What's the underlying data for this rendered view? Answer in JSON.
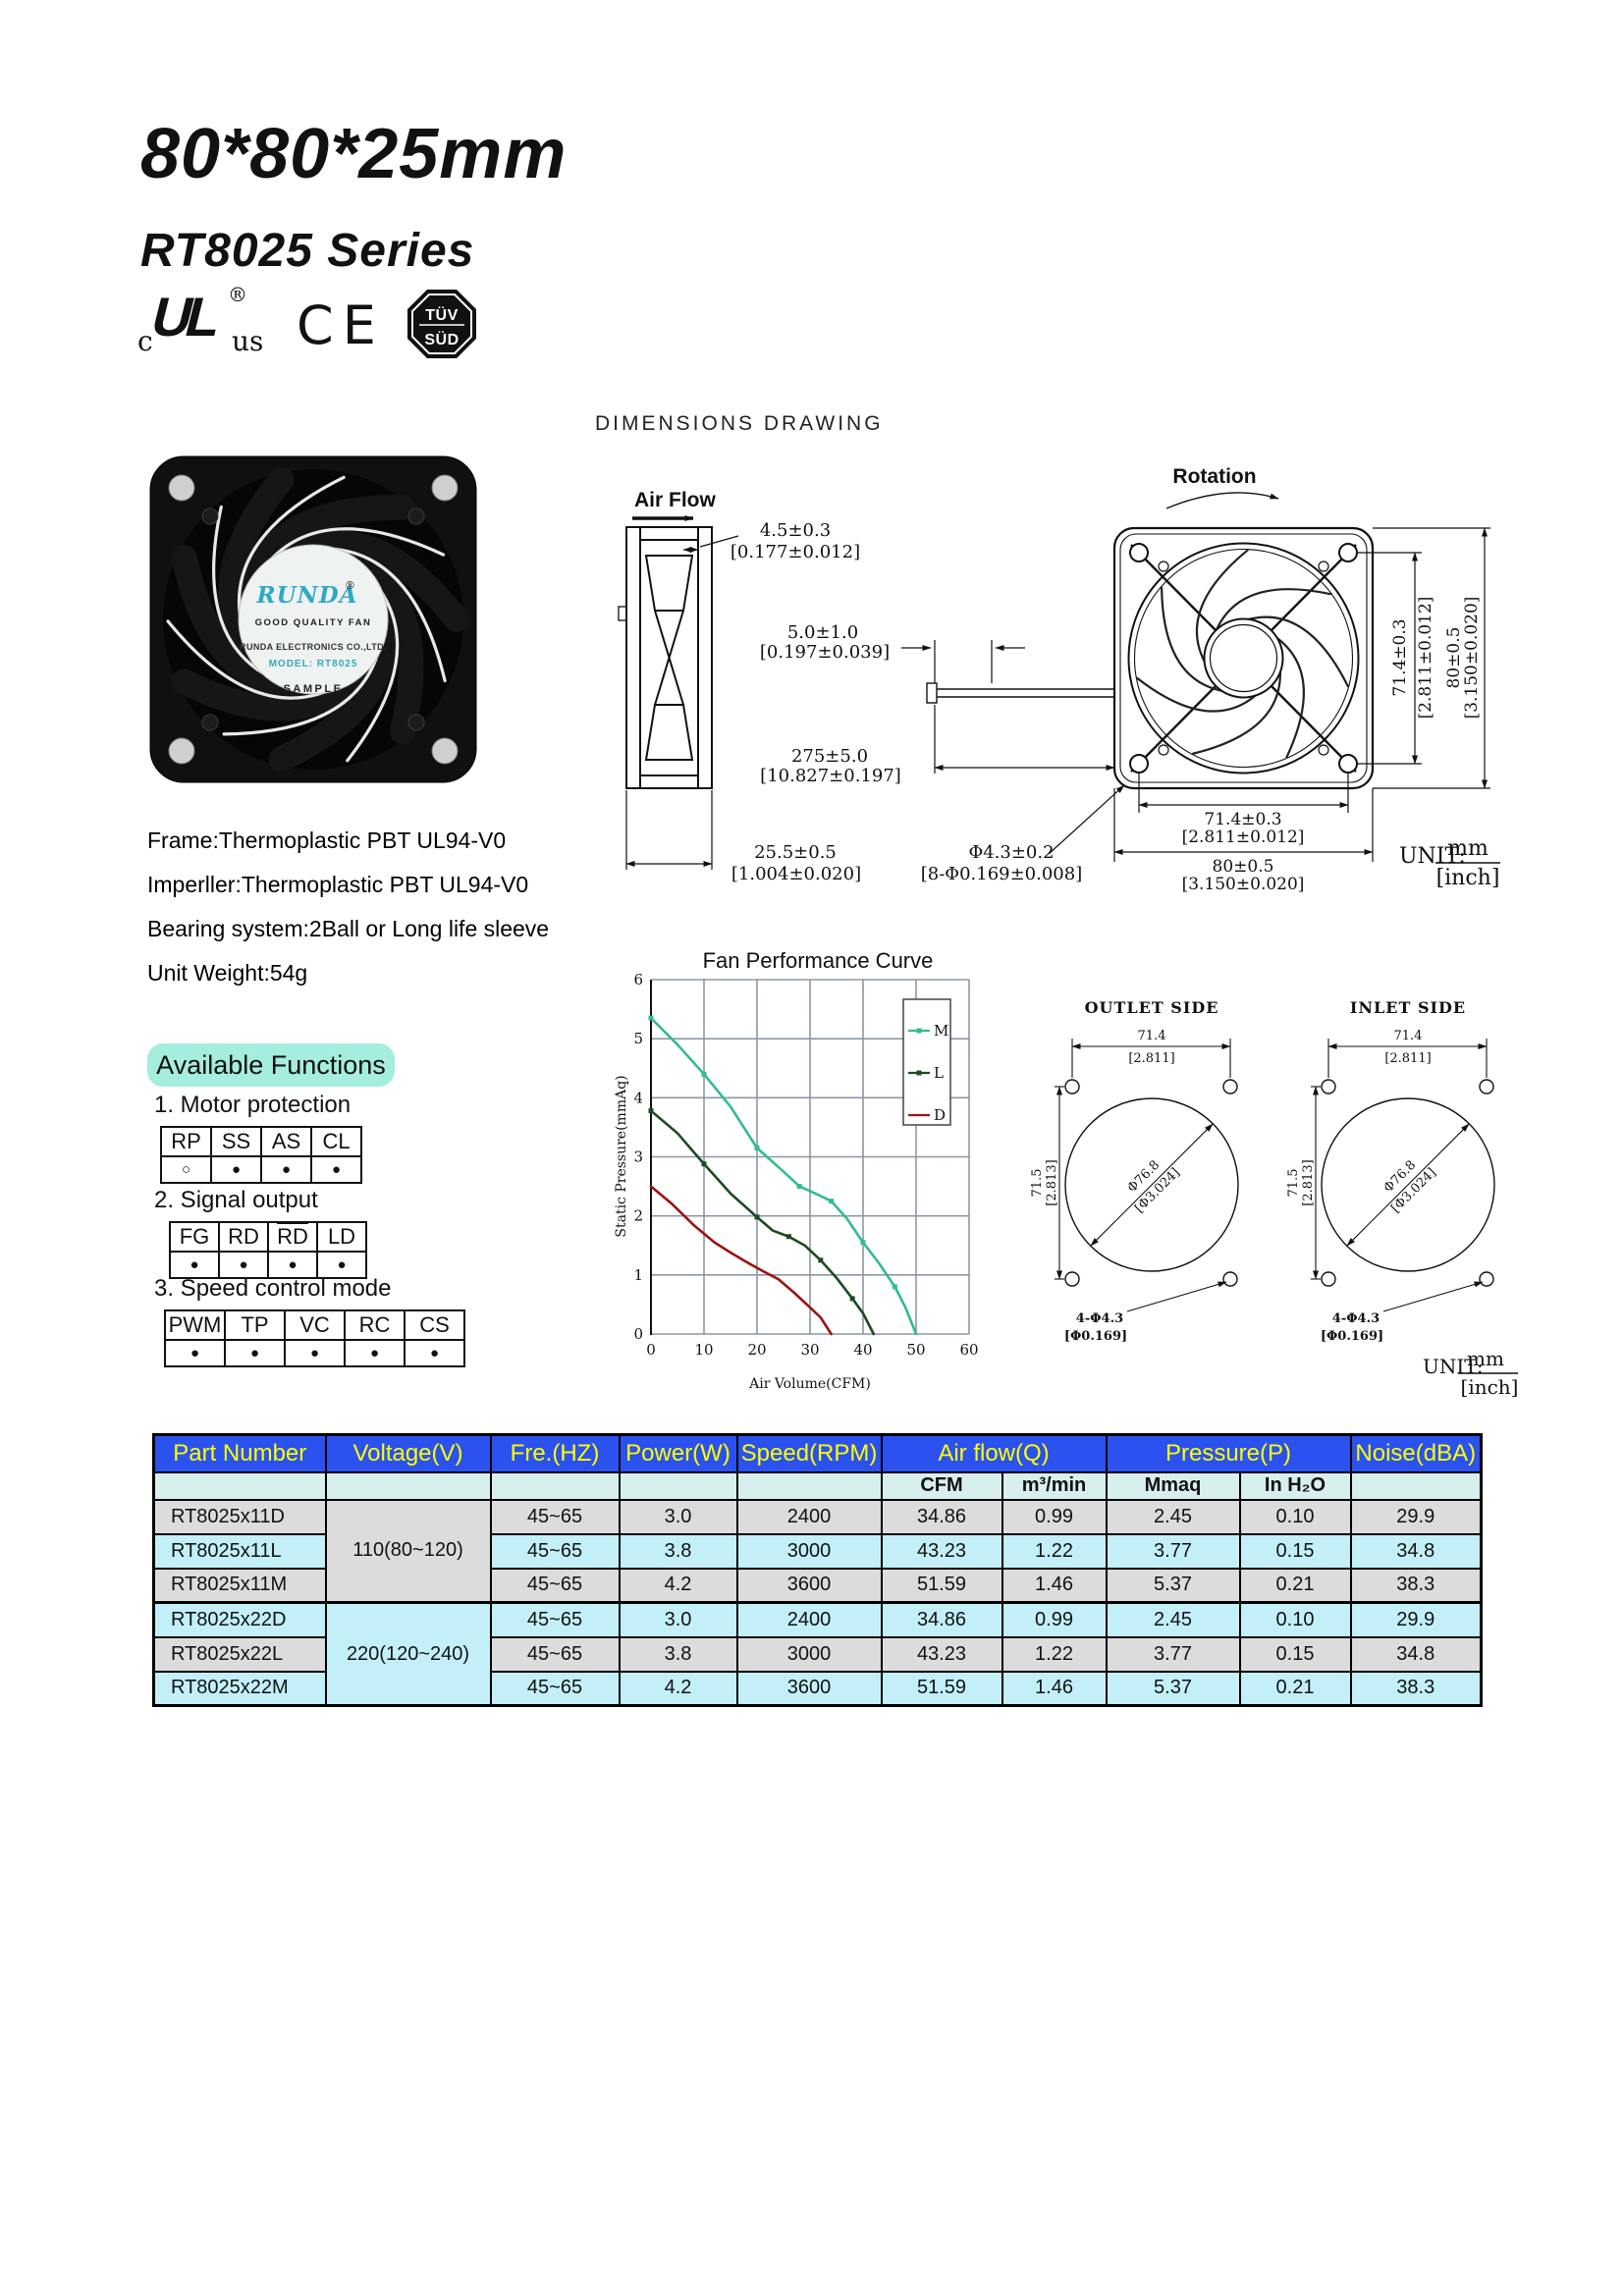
{
  "header": {
    "title": "80*80*25mm",
    "series": "RT8025 Series"
  },
  "logos": {
    "ul_c": "c",
    "ul_mark": "UL",
    "ul_reg": "®",
    "ul_us": "us",
    "ce": "CE",
    "tuv_top": "TÜV",
    "tuv_bottom": "SÜD"
  },
  "section": {
    "dimensions_heading": "DIMENSIONS DRAWING"
  },
  "fan_label": {
    "brand": "RUNDA",
    "reg": "®",
    "line1": "GOOD QUALITY FAN",
    "line2": "RUNDA ELECTRONICS CO.,LTD.",
    "line3": "MODEL: RT8025",
    "line4": "SAMPLE"
  },
  "specs": [
    "Frame:Thermoplastic PBT UL94-V0",
    "Imperller:Thermoplastic PBT UL94-V0",
    "Bearing system:2Ball or Long life sleeve",
    "Unit Weight:54g"
  ],
  "drawing": {
    "air_flow": "Air Flow",
    "rotation": "Rotation",
    "d1_mm": "4.5±0.3",
    "d1_in": "[0.177±0.012]",
    "d2_mm": "5.0±1.0",
    "d2_in": "[0.197±0.039]",
    "d3_mm": "275±5.0",
    "d3_in": "[10.827±0.197]",
    "d4_mm": "25.5±0.5",
    "d4_in": "[1.004±0.020]",
    "d5_mm": "Φ4.3±0.2",
    "d5_in": "[8-Φ0.169±0.008]",
    "v1_mm": "71.4±0.3",
    "v1_in": "[2.811±0.012]",
    "v2_mm": "80±0.5",
    "v2_in": "[3.150±0.020]",
    "h1_mm": "71.4±0.3",
    "h1_in": "[2.811±0.012]",
    "h2_mm": "80±0.5",
    "h2_in": "[3.150±0.020]",
    "unit_label": "UNIT:",
    "unit_mm": "mm",
    "unit_in": "[inch]"
  },
  "outlet_inlet": {
    "outlet_title": "OUTLET SIDE",
    "inlet_title": "INLET SIDE",
    "top_mm": "71.4",
    "top_in": "[2.811]",
    "left_mm": "71.5",
    "left_in": "[2.813]",
    "diag_mm": "Φ76.8",
    "diag_in": "[Φ3.024]",
    "holes_mm": "4-Φ4.3",
    "holes_in": "[Φ0.169]",
    "unit_label": "UNIT:",
    "unit_mm": "mm",
    "unit_in": "[inch]"
  },
  "functions": {
    "title": "Available Functions",
    "open_mark": "○",
    "filled_mark": "●",
    "groups": [
      {
        "label": "1.  Motor protection",
        "cols": [
          "RP",
          "SS",
          "AS",
          "CL"
        ],
        "overline": [
          false,
          false,
          false,
          false
        ],
        "marks": [
          "open",
          "filled",
          "filled",
          "filled"
        ]
      },
      {
        "label": "2.  Signal output",
        "cols": [
          "FG",
          "RD",
          "RD",
          "LD"
        ],
        "overline": [
          false,
          false,
          true,
          false
        ],
        "marks": [
          "filled",
          "filled",
          "filled",
          "filled"
        ]
      },
      {
        "label": "3.  Speed control mode",
        "cols": [
          "PWM",
          "TP",
          "VC",
          "RC",
          "CS"
        ],
        "overline": [
          false,
          false,
          false,
          false,
          false
        ],
        "marks": [
          "filled",
          "filled",
          "filled",
          "filled",
          "filled"
        ]
      }
    ]
  },
  "chart_data": {
    "type": "line",
    "title": "Fan Performance Curve",
    "xlabel": "Air Volume(CFM)",
    "ylabel": "Static Pressure(mmAq)",
    "xlim": [
      0,
      60
    ],
    "ylim": [
      0,
      6
    ],
    "xticks": [
      0,
      10,
      20,
      30,
      40,
      50,
      60
    ],
    "yticks": [
      0,
      1,
      2,
      3,
      4,
      5,
      6
    ],
    "grid": true,
    "legend_position": "top-right",
    "series": [
      {
        "name": "M",
        "color": "#2fbd8d",
        "marker": "square",
        "points": [
          [
            0,
            5.35
          ],
          [
            5,
            4.9
          ],
          [
            10,
            4.4
          ],
          [
            15,
            3.85
          ],
          [
            20,
            3.15
          ],
          [
            25,
            2.75
          ],
          [
            28,
            2.5
          ],
          [
            31,
            2.38
          ],
          [
            34,
            2.25
          ],
          [
            37,
            1.95
          ],
          [
            40,
            1.55
          ],
          [
            43,
            1.2
          ],
          [
            46,
            0.8
          ],
          [
            48,
            0.45
          ],
          [
            50,
            0
          ]
        ]
      },
      {
        "name": "L",
        "color": "#1d4a21",
        "marker": "square",
        "points": [
          [
            0,
            3.78
          ],
          [
            5,
            3.4
          ],
          [
            10,
            2.88
          ],
          [
            15,
            2.38
          ],
          [
            20,
            1.98
          ],
          [
            23,
            1.75
          ],
          [
            26,
            1.65
          ],
          [
            29,
            1.5
          ],
          [
            32,
            1.25
          ],
          [
            35,
            0.95
          ],
          [
            38,
            0.6
          ],
          [
            40,
            0.35
          ],
          [
            42,
            0
          ]
        ]
      },
      {
        "name": "D",
        "color": "#9c1212",
        "marker": null,
        "points": [
          [
            0,
            2.5
          ],
          [
            4,
            2.2
          ],
          [
            8,
            1.85
          ],
          [
            12,
            1.55
          ],
          [
            15,
            1.38
          ],
          [
            18,
            1.22
          ],
          [
            21,
            1.07
          ],
          [
            24,
            0.93
          ],
          [
            27,
            0.7
          ],
          [
            30,
            0.45
          ],
          [
            32,
            0.28
          ],
          [
            34,
            0
          ]
        ]
      }
    ]
  },
  "spec_table": {
    "header": [
      "Part Number",
      "Voltage(V)",
      "Fre.(HZ)",
      "Power(W)",
      "Speed(RPM)",
      "Air flow(Q)",
      "Pressure(P)",
      "Noise(dBA)"
    ],
    "subheader": [
      "CFM",
      "m³/min",
      "Mmaq",
      "In H₂O"
    ],
    "voltage_groups": [
      "110(80~120)",
      "220(120~240)"
    ],
    "rows": [
      [
        "RT8025x11D",
        "45~65",
        "3.0",
        "2400",
        "34.86",
        "0.99",
        "2.45",
        "0.10",
        "29.9"
      ],
      [
        "RT8025x11L",
        "45~65",
        "3.8",
        "3000",
        "43.23",
        "1.22",
        "3.77",
        "0.15",
        "34.8"
      ],
      [
        "RT8025x11M",
        "45~65",
        "4.2",
        "3600",
        "51.59",
        "1.46",
        "5.37",
        "0.21",
        "38.3"
      ],
      [
        "RT8025x22D",
        "45~65",
        "3.0",
        "2400",
        "34.86",
        "0.99",
        "2.45",
        "0.10",
        "29.9"
      ],
      [
        "RT8025x22L",
        "45~65",
        "3.8",
        "3000",
        "43.23",
        "1.22",
        "3.77",
        "0.15",
        "34.8"
      ],
      [
        "RT8025x22M",
        "45~65",
        "4.2",
        "3600",
        "51.59",
        "1.46",
        "5.37",
        "0.21",
        "38.3"
      ]
    ]
  },
  "colors": {
    "header_bg": "#2b52ee",
    "header_text": "#ffff00",
    "row_gray": "#dcdcdc",
    "row_cyan": "#c3f0f8",
    "subheader_bg": "#d8efef",
    "badge_bg": "#a5edde",
    "grid": "#8c98a6",
    "series_m": "#2fbd8d",
    "series_l": "#1d4a21",
    "series_d": "#9c1212"
  }
}
